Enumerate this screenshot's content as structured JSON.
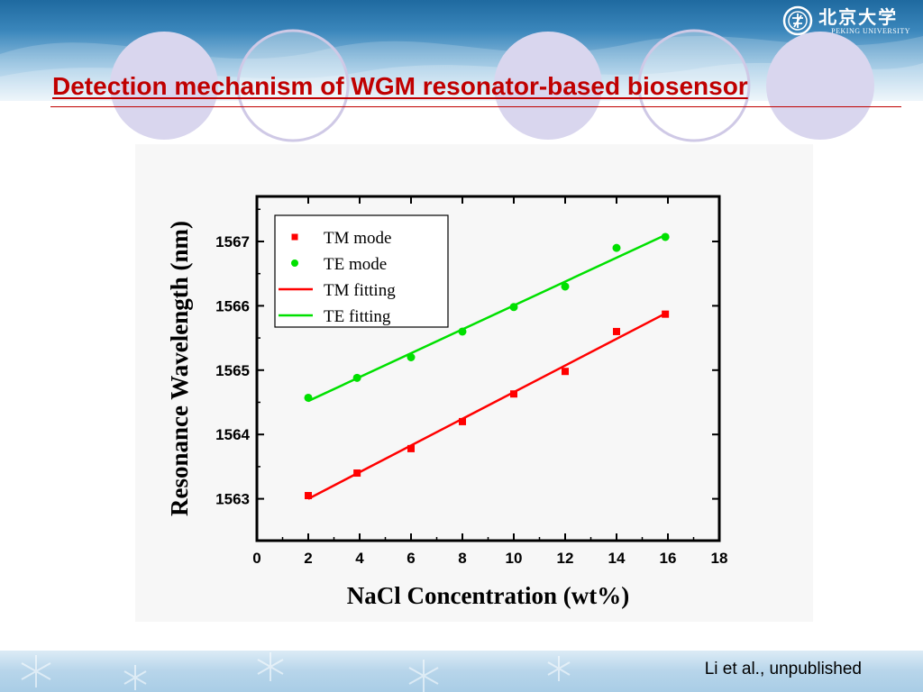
{
  "slide": {
    "title": "Detection mechanism of WGM resonator-based biosensor",
    "citation": "Li et al., unpublished",
    "logo": {
      "chinese": "北京大学",
      "english": "PEKING UNIVERSITY",
      "icon": "peking-university-seal-icon"
    }
  },
  "colors": {
    "title": "#c00000",
    "tm": "#ff0000",
    "te": "#00e000",
    "header": "#1f6aa0",
    "circle_fill": "#d9d6ee",
    "circle_stroke": "#cfc9e6"
  },
  "chart_data": {
    "type": "scatter",
    "title": "",
    "xlabel": "NaCl Concentration (wt%)",
    "ylabel": "Resonance Wavelength (nm)",
    "xlim": [
      0,
      18
    ],
    "ylim": [
      1562.35,
      1567.7
    ],
    "x_ticks": [
      0,
      2,
      4,
      6,
      8,
      10,
      12,
      14,
      16,
      18
    ],
    "y_ticks": [
      1563,
      1564,
      1565,
      1566,
      1567
    ],
    "grid": false,
    "legend_position": "top-left",
    "series": [
      {
        "name": "TM mode",
        "kind": "points",
        "marker": "square",
        "color": "#ff0000",
        "x": [
          2,
          3.9,
          6,
          8,
          10,
          12,
          14,
          15.9
        ],
        "y": [
          1563.05,
          1563.4,
          1563.78,
          1564.2,
          1564.63,
          1564.98,
          1565.6,
          1565.87
        ]
      },
      {
        "name": "TE  mode",
        "kind": "points",
        "marker": "circle",
        "color": "#00e000",
        "x": [
          2,
          3.9,
          6,
          8,
          10,
          12,
          14,
          15.9
        ],
        "y": [
          1564.57,
          1564.88,
          1565.2,
          1565.6,
          1565.98,
          1566.3,
          1566.9,
          1567.07
        ]
      },
      {
        "name": "TM fitting",
        "kind": "line",
        "color": "#ff0000",
        "x": [
          2,
          15.9
        ],
        "y": [
          1563.0,
          1565.88
        ]
      },
      {
        "name": "TE  fitting",
        "kind": "line",
        "color": "#00e000",
        "x": [
          2,
          15.9
        ],
        "y": [
          1564.52,
          1567.1
        ]
      }
    ]
  }
}
